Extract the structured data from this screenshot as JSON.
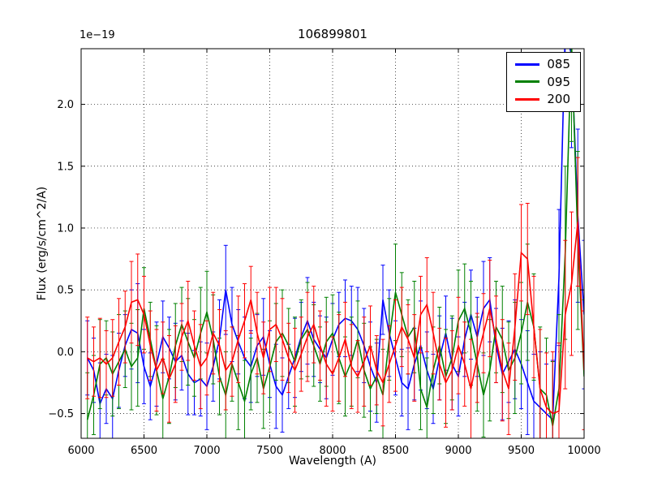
{
  "chart_data": {
    "type": "line",
    "title": "106899801",
    "xlabel": "Wavelength (A)",
    "ylabel": "Flux (erg/s/cm^2/A)",
    "y_offset_label": "1e−19",
    "xlim": [
      6000,
      10000
    ],
    "ylim": [
      -0.7,
      2.45
    ],
    "xticks": [
      6000,
      6500,
      7000,
      7500,
      8000,
      8500,
      9000,
      9500,
      10000
    ],
    "xtick_labels": [
      "6000",
      "6500",
      "7000",
      "7500",
      "8000",
      "8500",
      "9000",
      "9500",
      "10000"
    ],
    "yticks": [
      -0.5,
      0.0,
      0.5,
      1.0,
      1.5,
      2.0
    ],
    "ytick_labels": [
      "−0.5",
      "0.0",
      "0.5",
      "1.0",
      "1.5",
      "2.0"
    ],
    "grid": true,
    "legend_position": "upper right",
    "x": [
      6050,
      6100,
      6150,
      6200,
      6250,
      6300,
      6350,
      6400,
      6450,
      6500,
      6550,
      6600,
      6650,
      6700,
      6750,
      6800,
      6850,
      6900,
      6950,
      7000,
      7050,
      7100,
      7150,
      7200,
      7250,
      7300,
      7350,
      7400,
      7450,
      7500,
      7550,
      7600,
      7650,
      7700,
      7750,
      7800,
      7850,
      7900,
      7950,
      8000,
      8050,
      8100,
      8150,
      8200,
      8250,
      8300,
      8350,
      8400,
      8450,
      8500,
      8550,
      8600,
      8650,
      8700,
      8750,
      8800,
      8850,
      8900,
      8950,
      9000,
      9050,
      9100,
      9150,
      9200,
      9250,
      9300,
      9350,
      9400,
      9450,
      9500,
      9550,
      9600,
      9650,
      9700,
      9750,
      9800,
      9850,
      9900,
      9950,
      10000
    ],
    "series": [
      {
        "name": "085",
        "color": "#0000ff",
        "y": [
          -0.05,
          -0.15,
          -0.42,
          -0.3,
          -0.38,
          -0.15,
          0.05,
          0.18,
          0.15,
          -0.12,
          -0.28,
          -0.1,
          0.12,
          0.03,
          -0.08,
          -0.03,
          -0.18,
          -0.25,
          -0.22,
          -0.28,
          -0.12,
          0.1,
          0.5,
          0.22,
          0.08,
          -0.05,
          -0.12,
          0.05,
          0.12,
          -0.1,
          -0.28,
          -0.35,
          -0.2,
          -0.05,
          0.12,
          0.25,
          0.1,
          0.02,
          -0.05,
          0.1,
          0.22,
          0.27,
          0.25,
          0.18,
          0.05,
          -0.12,
          -0.25,
          0.42,
          0.15,
          -0.05,
          -0.25,
          -0.3,
          -0.1,
          0.05,
          -0.15,
          -0.3,
          -0.05,
          0.15,
          -0.1,
          -0.2,
          0.1,
          0.3,
          0.12,
          0.35,
          0.42,
          0.05,
          -0.18,
          -0.08,
          0.02,
          -0.1,
          -0.25,
          -0.4,
          -0.45,
          -0.5,
          -0.55,
          0.6,
          2.6,
          2.4,
          1.1,
          0.3
        ],
        "yerr": [
          0.3,
          0.26,
          0.33,
          0.28,
          0.35,
          0.3,
          0.25,
          0.32,
          0.4,
          0.3,
          0.27,
          0.34,
          0.29,
          0.25,
          0.31,
          0.28,
          0.33,
          0.26,
          0.3,
          0.35,
          0.28,
          0.32,
          0.36,
          0.3,
          0.26,
          0.33,
          0.29,
          0.25,
          0.31,
          0.27,
          0.34,
          0.3,
          0.26,
          0.32,
          0.28,
          0.35,
          0.3,
          0.27,
          0.33,
          0.29,
          0.26,
          0.31,
          0.28,
          0.34,
          0.3,
          0.36,
          0.32,
          0.28,
          0.35,
          0.3,
          0.27,
          0.33,
          0.29,
          0.36,
          0.31,
          0.28,
          0.34,
          0.3,
          0.37,
          0.32,
          0.3,
          0.36,
          0.32,
          0.38,
          0.34,
          0.3,
          0.37,
          0.33,
          0.4,
          0.36,
          0.42,
          0.38,
          0.45,
          0.4,
          0.48,
          0.55,
          0.65,
          0.75,
          0.7,
          0.6
        ]
      },
      {
        "name": "095",
        "color": "#008000",
        "y": [
          -0.55,
          -0.35,
          -0.1,
          -0.05,
          -0.18,
          -0.08,
          0.02,
          -0.12,
          -0.05,
          0.35,
          0.1,
          -0.15,
          -0.38,
          -0.2,
          0.05,
          0.22,
          0.08,
          -0.05,
          0.15,
          0.32,
          0.1,
          -0.2,
          -0.35,
          -0.1,
          -0.25,
          -0.4,
          -0.18,
          -0.05,
          -0.3,
          -0.12,
          0.08,
          0.15,
          0.05,
          -0.08,
          0.1,
          0.18,
          0.05,
          -0.1,
          0.08,
          0.15,
          -0.05,
          -0.2,
          -0.08,
          0.1,
          -0.15,
          -0.3,
          -0.2,
          -0.35,
          0.1,
          0.48,
          0.3,
          0.12,
          0.2,
          -0.3,
          -0.45,
          -0.15,
          0.05,
          -0.2,
          -0.05,
          0.25,
          0.35,
          0.15,
          -0.1,
          -0.35,
          -0.15,
          0.2,
          0.1,
          -0.15,
          -0.05,
          0.15,
          0.4,
          0.2,
          -0.3,
          -0.35,
          -0.6,
          -0.3,
          0.8,
          2.5,
          0.9,
          -0.2
        ],
        "yerr": [
          0.38,
          0.32,
          0.36,
          0.3,
          0.34,
          0.38,
          0.31,
          0.35,
          0.39,
          0.33,
          0.3,
          0.36,
          0.32,
          0.38,
          0.34,
          0.3,
          0.35,
          0.31,
          0.37,
          0.33,
          0.36,
          0.31,
          0.35,
          0.3,
          0.38,
          0.33,
          0.29,
          0.36,
          0.32,
          0.37,
          0.31,
          0.35,
          0.3,
          0.36,
          0.32,
          0.38,
          0.33,
          0.3,
          0.36,
          0.31,
          0.37,
          0.32,
          0.36,
          0.31,
          0.38,
          0.34,
          0.3,
          0.37,
          0.33,
          0.39,
          0.34,
          0.3,
          0.37,
          0.33,
          0.4,
          0.35,
          0.31,
          0.38,
          0.34,
          0.41,
          0.36,
          0.42,
          0.38,
          0.34,
          0.41,
          0.37,
          0.43,
          0.39,
          0.45,
          0.41,
          0.47,
          0.43,
          0.5,
          0.46,
          0.52,
          0.6,
          0.7,
          0.8,
          0.72,
          0.62
        ]
      },
      {
        "name": "200",
        "color": "#ff0000",
        "y": [
          -0.05,
          -0.08,
          -0.05,
          -0.1,
          -0.05,
          0.08,
          0.2,
          0.4,
          0.42,
          0.3,
          0.05,
          -0.15,
          -0.05,
          -0.22,
          -0.1,
          0.12,
          0.25,
          0.05,
          -0.12,
          -0.05,
          0.15,
          0.05,
          -0.15,
          -0.08,
          0.1,
          0.25,
          0.42,
          0.15,
          -0.05,
          0.18,
          0.22,
          0.1,
          -0.05,
          -0.15,
          -0.02,
          0.12,
          0.22,
          0.05,
          -0.1,
          -0.18,
          -0.05,
          0.1,
          -0.12,
          -0.2,
          -0.08,
          0.05,
          -0.15,
          -0.25,
          -0.1,
          0.05,
          0.2,
          0.1,
          -0.05,
          0.3,
          0.38,
          0.15,
          -0.1,
          -0.25,
          -0.15,
          0.05,
          -0.1,
          -0.3,
          -0.05,
          0.15,
          0.35,
          0.1,
          -0.15,
          -0.3,
          0.2,
          0.8,
          0.75,
          0.2,
          -0.3,
          -0.45,
          -0.5,
          -0.48,
          0.3,
          0.55,
          1.05,
          -0.15
        ],
        "yerr": [
          0.33,
          0.28,
          0.32,
          0.27,
          0.31,
          0.35,
          0.29,
          0.33,
          0.37,
          0.31,
          0.28,
          0.33,
          0.29,
          0.35,
          0.31,
          0.27,
          0.32,
          0.28,
          0.34,
          0.3,
          0.33,
          0.29,
          0.32,
          0.28,
          0.35,
          0.3,
          0.27,
          0.33,
          0.29,
          0.34,
          0.3,
          0.33,
          0.28,
          0.34,
          0.3,
          0.36,
          0.31,
          0.28,
          0.34,
          0.3,
          0.35,
          0.3,
          0.34,
          0.29,
          0.36,
          0.32,
          0.28,
          0.35,
          0.31,
          0.37,
          0.32,
          0.28,
          0.35,
          0.31,
          0.38,
          0.33,
          0.29,
          0.36,
          0.32,
          0.39,
          0.34,
          0.4,
          0.36,
          0.32,
          0.39,
          0.35,
          0.41,
          0.37,
          0.43,
          0.39,
          0.45,
          0.41,
          0.48,
          0.44,
          0.5,
          0.55,
          0.6,
          0.58,
          0.52,
          0.48
        ]
      }
    ]
  }
}
